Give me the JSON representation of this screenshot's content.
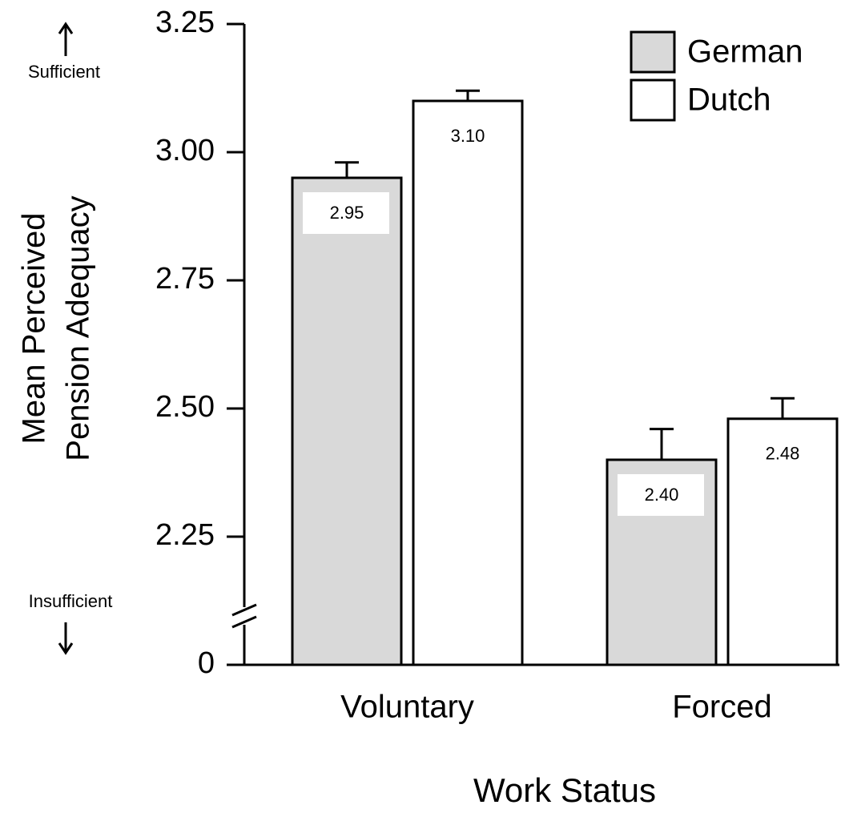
{
  "chart_data": {
    "type": "bar",
    "ylabel": [
      "Mean Perceived",
      "Pension Adequacy"
    ],
    "xlabel": "Work Status",
    "annotations": {
      "top": "Sufficient",
      "bottom": "Insufficient"
    },
    "categories": [
      "Voluntary",
      "Forced"
    ],
    "series": [
      {
        "name": "German",
        "color": "#d9d9d9",
        "values": [
          2.95,
          2.4
        ],
        "value_labels": [
          "2.95",
          "2.40"
        ],
        "errors": [
          0.03,
          0.06
        ]
      },
      {
        "name": "Dutch",
        "color": "#ffffff",
        "values": [
          3.1,
          2.48
        ],
        "value_labels": [
          "3.10",
          "2.48"
        ],
        "errors": [
          0.02,
          0.04
        ]
      }
    ],
    "ylim": [
      0,
      3.25
    ],
    "ybreak": [
      0,
      2
    ],
    "yticks": [
      0,
      2.25,
      {
        "value": 2.5,
        "label": "2.50"
      },
      2.75,
      {
        "value": 3,
        "label": "3.00"
      },
      3.25
    ],
    "legend": "top-right",
    "grid": false
  }
}
